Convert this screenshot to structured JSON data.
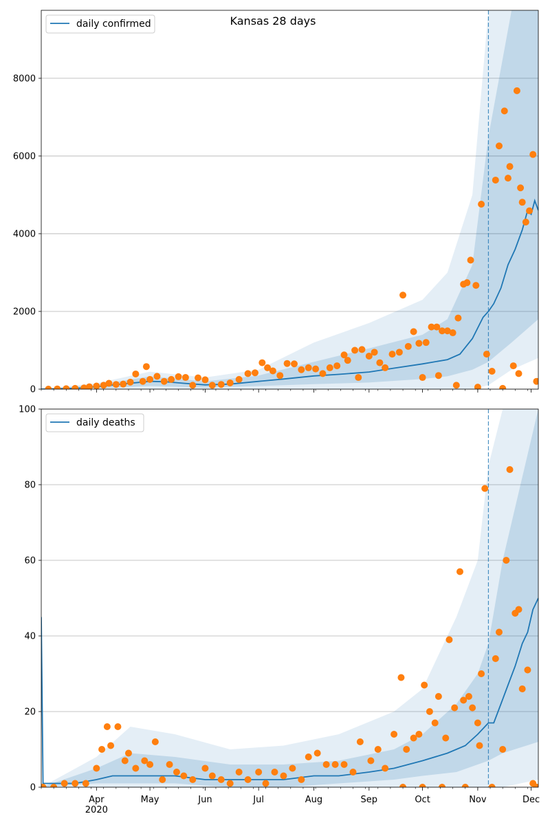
{
  "title": "Kansas 28 days",
  "colors": {
    "line": "#1f77b4",
    "band": "#1f77b4",
    "points": "#ff7f0e",
    "grid": "#b0b0b0"
  },
  "x_axis": {
    "range": [
      "2020-03-01",
      "2020-12-05"
    ],
    "ticks": [
      {
        "date": "2020-04-01",
        "label": "Apr",
        "sublabel": "2020"
      },
      {
        "date": "2020-05-01",
        "label": "May",
        "sublabel": ""
      },
      {
        "date": "2020-06-01",
        "label": "Jun",
        "sublabel": ""
      },
      {
        "date": "2020-07-01",
        "label": "Jul",
        "sublabel": ""
      },
      {
        "date": "2020-08-01",
        "label": "Aug",
        "sublabel": ""
      },
      {
        "date": "2020-09-01",
        "label": "Sep",
        "sublabel": ""
      },
      {
        "date": "2020-10-01",
        "label": "Oct",
        "sublabel": ""
      },
      {
        "date": "2020-11-01",
        "label": "Nov",
        "sublabel": ""
      },
      {
        "date": "2020-12-01",
        "label": "Dec",
        "sublabel": ""
      }
    ],
    "forecast_start": "2020-11-07"
  },
  "chart_data": [
    {
      "type": "line",
      "legend": "daily confirmed",
      "legend_position": "top-left",
      "ylim": [
        0,
        9750
      ],
      "yticks": [
        0,
        2000,
        4000,
        6000,
        8000
      ],
      "grid": "horizontal",
      "fit_line": [
        [
          "2020-03-01",
          0
        ],
        [
          "2020-03-20",
          20
        ],
        [
          "2020-04-01",
          60
        ],
        [
          "2020-04-15",
          130
        ],
        [
          "2020-05-01",
          200
        ],
        [
          "2020-05-10",
          190
        ],
        [
          "2020-05-20",
          150
        ],
        [
          "2020-06-01",
          110
        ],
        [
          "2020-06-15",
          130
        ],
        [
          "2020-07-01",
          200
        ],
        [
          "2020-07-15",
          260
        ],
        [
          "2020-08-01",
          340
        ],
        [
          "2020-08-15",
          380
        ],
        [
          "2020-09-01",
          440
        ],
        [
          "2020-09-15",
          540
        ],
        [
          "2020-10-01",
          650
        ],
        [
          "2020-10-15",
          760
        ],
        [
          "2020-10-22",
          900
        ],
        [
          "2020-10-29",
          1300
        ],
        [
          "2020-11-04",
          1850
        ],
        [
          "2020-11-07",
          2000
        ],
        [
          "2020-11-10",
          2200
        ],
        [
          "2020-11-14",
          2600
        ],
        [
          "2020-11-18",
          3200
        ],
        [
          "2020-11-22",
          3600
        ],
        [
          "2020-11-26",
          4100
        ],
        [
          "2020-11-29",
          4600
        ],
        [
          "2020-12-01",
          4500
        ],
        [
          "2020-12-03",
          4850
        ],
        [
          "2020-12-05",
          4600
        ]
      ],
      "band_outer": [
        [
          "2020-03-01",
          0,
          0
        ],
        [
          "2020-04-01",
          0,
          150
        ],
        [
          "2020-05-01",
          0,
          450
        ],
        [
          "2020-06-01",
          0,
          300
        ],
        [
          "2020-07-01",
          0,
          500
        ],
        [
          "2020-08-01",
          0,
          1200
        ],
        [
          "2020-09-01",
          0,
          1700
        ],
        [
          "2020-10-01",
          0,
          2300
        ],
        [
          "2020-10-15",
          0,
          3000
        ],
        [
          "2020-10-29",
          0,
          5000
        ],
        [
          "2020-11-07",
          100,
          9750
        ],
        [
          "2020-11-20",
          500,
          9750
        ],
        [
          "2020-12-05",
          800,
          9750
        ]
      ],
      "band_inner": [
        [
          "2020-03-01",
          0,
          0
        ],
        [
          "2020-04-01",
          20,
          100
        ],
        [
          "2020-05-01",
          80,
          330
        ],
        [
          "2020-06-01",
          40,
          200
        ],
        [
          "2020-07-01",
          80,
          350
        ],
        [
          "2020-08-01",
          130,
          700
        ],
        [
          "2020-09-01",
          170,
          1050
        ],
        [
          "2020-10-01",
          260,
          1400
        ],
        [
          "2020-10-15",
          330,
          1800
        ],
        [
          "2020-10-29",
          500,
          3200
        ],
        [
          "2020-11-07",
          700,
          6500
        ],
        [
          "2020-11-20",
          1200,
          9750
        ],
        [
          "2020-12-05",
          1800,
          9750
        ]
      ],
      "observations": [
        [
          "2020-03-05",
          0
        ],
        [
          "2020-03-10",
          5
        ],
        [
          "2020-03-15",
          10
        ],
        [
          "2020-03-20",
          20
        ],
        [
          "2020-03-25",
          30
        ],
        [
          "2020-03-28",
          60
        ],
        [
          "2020-04-01",
          80
        ],
        [
          "2020-04-05",
          100
        ],
        [
          "2020-04-08",
          150
        ],
        [
          "2020-04-12",
          120
        ],
        [
          "2020-04-16",
          130
        ],
        [
          "2020-04-20",
          180
        ],
        [
          "2020-04-23",
          390
        ],
        [
          "2020-04-27",
          200
        ],
        [
          "2020-05-01",
          250
        ],
        [
          "2020-04-29",
          580
        ],
        [
          "2020-05-05",
          330
        ],
        [
          "2020-05-09",
          200
        ],
        [
          "2020-05-13",
          250
        ],
        [
          "2020-05-17",
          320
        ],
        [
          "2020-05-21",
          300
        ],
        [
          "2020-05-25",
          100
        ],
        [
          "2020-05-28",
          290
        ],
        [
          "2020-06-01",
          240
        ],
        [
          "2020-06-05",
          100
        ],
        [
          "2020-06-10",
          120
        ],
        [
          "2020-06-15",
          160
        ],
        [
          "2020-06-20",
          250
        ],
        [
          "2020-06-25",
          400
        ],
        [
          "2020-06-29",
          420
        ],
        [
          "2020-07-03",
          680
        ],
        [
          "2020-07-06",
          550
        ],
        [
          "2020-07-09",
          470
        ],
        [
          "2020-07-13",
          350
        ],
        [
          "2020-07-17",
          660
        ],
        [
          "2020-07-21",
          650
        ],
        [
          "2020-07-25",
          500
        ],
        [
          "2020-07-29",
          550
        ],
        [
          "2020-08-02",
          520
        ],
        [
          "2020-08-06",
          400
        ],
        [
          "2020-08-10",
          550
        ],
        [
          "2020-08-14",
          600
        ],
        [
          "2020-08-18",
          880
        ],
        [
          "2020-08-20",
          740
        ],
        [
          "2020-08-24",
          1000
        ],
        [
          "2020-08-28",
          1020
        ],
        [
          "2020-08-26",
          300
        ],
        [
          "2020-09-01",
          850
        ],
        [
          "2020-09-04",
          950
        ],
        [
          "2020-09-07",
          680
        ],
        [
          "2020-09-10",
          550
        ],
        [
          "2020-09-14",
          900
        ],
        [
          "2020-09-18",
          950
        ],
        [
          "2020-09-20",
          2420
        ],
        [
          "2020-09-23",
          1100
        ],
        [
          "2020-09-26",
          1480
        ],
        [
          "2020-09-29",
          1180
        ],
        [
          "2020-10-03",
          1200
        ],
        [
          "2020-10-06",
          1600
        ],
        [
          "2020-10-09",
          1600
        ],
        [
          "2020-10-12",
          1500
        ],
        [
          "2020-10-15",
          1500
        ],
        [
          "2020-10-18",
          1450
        ],
        [
          "2020-10-21",
          1830
        ],
        [
          "2020-10-24",
          2700
        ],
        [
          "2020-10-26",
          2740
        ],
        [
          "2020-10-28",
          3320
        ],
        [
          "2020-10-31",
          2670
        ],
        [
          "2020-11-03",
          4760
        ],
        [
          "2020-11-06",
          900
        ],
        [
          "2020-11-09",
          460
        ],
        [
          "2020-11-11",
          5380
        ],
        [
          "2020-11-13",
          6260
        ],
        [
          "2020-11-16",
          7160
        ],
        [
          "2020-11-18",
          5430
        ],
        [
          "2020-11-19",
          5730
        ],
        [
          "2020-11-21",
          600
        ],
        [
          "2020-11-23",
          7680
        ],
        [
          "2020-11-24",
          400
        ],
        [
          "2020-11-25",
          5180
        ],
        [
          "2020-11-26",
          4810
        ],
        [
          "2020-11-28",
          4300
        ],
        [
          "2020-11-30",
          4590
        ],
        [
          "2020-12-02",
          6040
        ],
        [
          "2020-12-04",
          200
        ],
        [
          "2020-10-01",
          300
        ],
        [
          "2020-10-10",
          350
        ],
        [
          "2020-10-20",
          100
        ],
        [
          "2020-11-01",
          50
        ],
        [
          "2020-11-15",
          20
        ]
      ]
    },
    {
      "type": "line",
      "legend": "daily deaths",
      "legend_position": "top-left",
      "ylim": [
        0,
        100
      ],
      "yticks": [
        0,
        20,
        40,
        60,
        80,
        100
      ],
      "grid": "horizontal",
      "fit_line": [
        [
          "2020-03-01",
          45
        ],
        [
          "2020-03-02",
          1
        ],
        [
          "2020-03-20",
          1
        ],
        [
          "2020-04-01",
          2
        ],
        [
          "2020-04-10",
          3
        ],
        [
          "2020-05-01",
          3
        ],
        [
          "2020-05-15",
          3
        ],
        [
          "2020-06-01",
          2
        ],
        [
          "2020-06-15",
          2
        ],
        [
          "2020-07-01",
          2
        ],
        [
          "2020-07-15",
          2
        ],
        [
          "2020-08-01",
          3
        ],
        [
          "2020-08-15",
          3
        ],
        [
          "2020-09-01",
          4
        ],
        [
          "2020-09-15",
          5
        ],
        [
          "2020-10-01",
          7
        ],
        [
          "2020-10-15",
          9
        ],
        [
          "2020-10-25",
          11
        ],
        [
          "2020-11-01",
          14
        ],
        [
          "2020-11-07",
          17
        ],
        [
          "2020-11-10",
          17
        ],
        [
          "2020-11-14",
          22
        ],
        [
          "2020-11-18",
          27
        ],
        [
          "2020-11-22",
          32
        ],
        [
          "2020-11-26",
          38
        ],
        [
          "2020-11-29",
          41
        ],
        [
          "2020-12-02",
          47
        ],
        [
          "2020-12-05",
          50
        ]
      ],
      "band_outer": [
        [
          "2020-03-01",
          0,
          0
        ],
        [
          "2020-04-01",
          0,
          8
        ],
        [
          "2020-04-20",
          0,
          16
        ],
        [
          "2020-05-15",
          0,
          14
        ],
        [
          "2020-06-15",
          0,
          10
        ],
        [
          "2020-07-15",
          0,
          11
        ],
        [
          "2020-08-15",
          0,
          14
        ],
        [
          "2020-09-15",
          0,
          20
        ],
        [
          "2020-10-01",
          0,
          26
        ],
        [
          "2020-10-20",
          0,
          45
        ],
        [
          "2020-11-01",
          0,
          60
        ],
        [
          "2020-11-07",
          0,
          85
        ],
        [
          "2020-11-15",
          0,
          100
        ],
        [
          "2020-12-05",
          2,
          100
        ]
      ],
      "band_inner": [
        [
          "2020-03-01",
          0,
          0
        ],
        [
          "2020-04-01",
          1,
          5
        ],
        [
          "2020-04-20",
          1,
          9
        ],
        [
          "2020-05-15",
          1,
          8
        ],
        [
          "2020-06-15",
          0,
          6
        ],
        [
          "2020-07-15",
          0,
          6
        ],
        [
          "2020-08-15",
          1,
          7
        ],
        [
          "2020-09-15",
          2,
          10
        ],
        [
          "2020-10-01",
          3,
          14
        ],
        [
          "2020-10-20",
          4,
          22
        ],
        [
          "2020-11-01",
          6,
          30
        ],
        [
          "2020-11-07",
          7,
          38
        ],
        [
          "2020-11-15",
          9,
          60
        ],
        [
          "2020-12-05",
          12,
          100
        ]
      ],
      "observations": [
        [
          "2020-03-02",
          0
        ],
        [
          "2020-03-08",
          0
        ],
        [
          "2020-03-14",
          1
        ],
        [
          "2020-03-20",
          1
        ],
        [
          "2020-03-26",
          1
        ],
        [
          "2020-04-01",
          5
        ],
        [
          "2020-04-04",
          10
        ],
        [
          "2020-04-07",
          16
        ],
        [
          "2020-04-09",
          11
        ],
        [
          "2020-04-13",
          16
        ],
        [
          "2020-04-17",
          7
        ],
        [
          "2020-04-19",
          9
        ],
        [
          "2020-04-23",
          5
        ],
        [
          "2020-04-28",
          7
        ],
        [
          "2020-05-01",
          6
        ],
        [
          "2020-05-04",
          12
        ],
        [
          "2020-05-08",
          2
        ],
        [
          "2020-05-12",
          6
        ],
        [
          "2020-05-16",
          4
        ],
        [
          "2020-05-20",
          3
        ],
        [
          "2020-05-25",
          2
        ],
        [
          "2020-06-01",
          5
        ],
        [
          "2020-06-05",
          3
        ],
        [
          "2020-06-10",
          2
        ],
        [
          "2020-06-15",
          1
        ],
        [
          "2020-06-20",
          4
        ],
        [
          "2020-06-25",
          2
        ],
        [
          "2020-07-01",
          4
        ],
        [
          "2020-07-05",
          1
        ],
        [
          "2020-07-10",
          4
        ],
        [
          "2020-07-15",
          3
        ],
        [
          "2020-07-20",
          5
        ],
        [
          "2020-07-25",
          2
        ],
        [
          "2020-07-29",
          8
        ],
        [
          "2020-08-03",
          9
        ],
        [
          "2020-08-08",
          6
        ],
        [
          "2020-08-13",
          6
        ],
        [
          "2020-08-18",
          6
        ],
        [
          "2020-08-23",
          4
        ],
        [
          "2020-08-27",
          12
        ],
        [
          "2020-09-02",
          7
        ],
        [
          "2020-09-06",
          10
        ],
        [
          "2020-09-10",
          5
        ],
        [
          "2020-09-15",
          14
        ],
        [
          "2020-09-19",
          29
        ],
        [
          "2020-09-22",
          10
        ],
        [
          "2020-09-26",
          13
        ],
        [
          "2020-09-29",
          14
        ],
        [
          "2020-10-02",
          27
        ],
        [
          "2020-10-05",
          20
        ],
        [
          "2020-10-08",
          17
        ],
        [
          "2020-10-10",
          24
        ],
        [
          "2020-10-14",
          13
        ],
        [
          "2020-10-16",
          39
        ],
        [
          "2020-10-19",
          21
        ],
        [
          "2020-10-22",
          57
        ],
        [
          "2020-10-24",
          23
        ],
        [
          "2020-10-27",
          24
        ],
        [
          "2020-10-29",
          21
        ],
        [
          "2020-11-01",
          17
        ],
        [
          "2020-11-03",
          30
        ],
        [
          "2020-11-05",
          79
        ],
        [
          "2020-11-09",
          0
        ],
        [
          "2020-11-11",
          34
        ],
        [
          "2020-11-13",
          41
        ],
        [
          "2020-11-15",
          10
        ],
        [
          "2020-11-17",
          60
        ],
        [
          "2020-11-19",
          84
        ],
        [
          "2020-11-22",
          46
        ],
        [
          "2020-11-24",
          47
        ],
        [
          "2020-11-26",
          26
        ],
        [
          "2020-11-29",
          31
        ],
        [
          "2020-12-02",
          1
        ],
        [
          "2020-12-04",
          0
        ],
        [
          "2020-09-20",
          0
        ],
        [
          "2020-10-01",
          0
        ],
        [
          "2020-10-12",
          0
        ],
        [
          "2020-10-25",
          0
        ],
        [
          "2020-11-02",
          11
        ]
      ]
    }
  ]
}
